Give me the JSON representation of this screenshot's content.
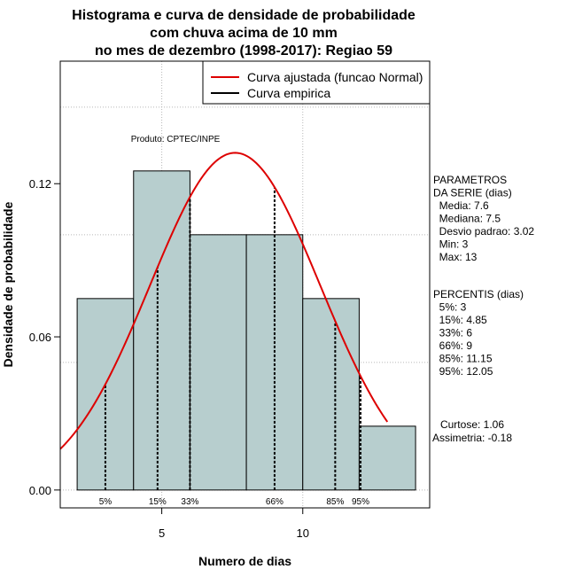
{
  "chart_data": {
    "type": "histogram",
    "title_lines": [
      "Histograma e curva de densidade de probabilidade",
      "com chuva acima de 10 mm",
      "no mes de dezembro (1998-2017): Regiao 59"
    ],
    "xlabel": "Numero de dias",
    "ylabel": "Densidade de probabilidade",
    "xlim": [
      1.4,
      14.5
    ],
    "ylim": [
      -0.007,
      0.168
    ],
    "x_ticks": [
      5,
      10
    ],
    "y_ticks": [
      0.0,
      0.06,
      0.12
    ],
    "y_tick_labels": [
      "0.00",
      "0.06",
      "0.12"
    ],
    "grid_x": [
      5,
      10
    ],
    "grid_y": [
      0.05,
      0.1,
      0.15
    ],
    "bins": [
      {
        "start": 2,
        "end": 4,
        "density": 0.075
      },
      {
        "start": 4,
        "end": 6,
        "density": 0.125
      },
      {
        "start": 6,
        "end": 8,
        "density": 0.1
      },
      {
        "start": 8,
        "end": 10,
        "density": 0.1
      },
      {
        "start": 10,
        "end": 12,
        "density": 0.075
      },
      {
        "start": 12,
        "end": 14,
        "density": 0.025
      }
    ],
    "bar_color": "#b7cece",
    "normal_curve": {
      "mean": 7.6,
      "sd": 3.02,
      "x_from": 1.4,
      "x_to": 13.0,
      "color": "#dd0000"
    },
    "percentile_lines": [
      {
        "label": "5%",
        "x": 3
      },
      {
        "label": "15%",
        "x": 4.85
      },
      {
        "label": "33%",
        "x": 6
      },
      {
        "label": "66%",
        "x": 9
      },
      {
        "label": "85%",
        "x": 11.15
      },
      {
        "label": "95%",
        "x": 12.05
      }
    ],
    "legend": {
      "position": "top-right",
      "entries": [
        {
          "label": "Curva ajustada (funcao Normal)",
          "color": "#dd0000"
        },
        {
          "label": "Curva empirica",
          "color": "#000000"
        }
      ]
    },
    "annotation": "Produto: CPTEC/INPE"
  },
  "side_panel": {
    "parametros": [
      "PARAMETROS",
      "DA SERIE (dias)",
      "  Media: 7.6",
      "  Mediana: 7.5",
      "  Desvio padrao: 3.02",
      "  Min: 3",
      "  Max: 13"
    ],
    "percentis": [
      "PERCENTIS (dias)",
      "  5%: 3",
      "  15%: 4.85",
      "  33%: 6",
      "  66%: 9",
      "  85%: 11.15",
      "  95%: 12.05"
    ],
    "shape": [
      "Curtose: 1.06",
      "Assimetria: -0.18"
    ]
  }
}
